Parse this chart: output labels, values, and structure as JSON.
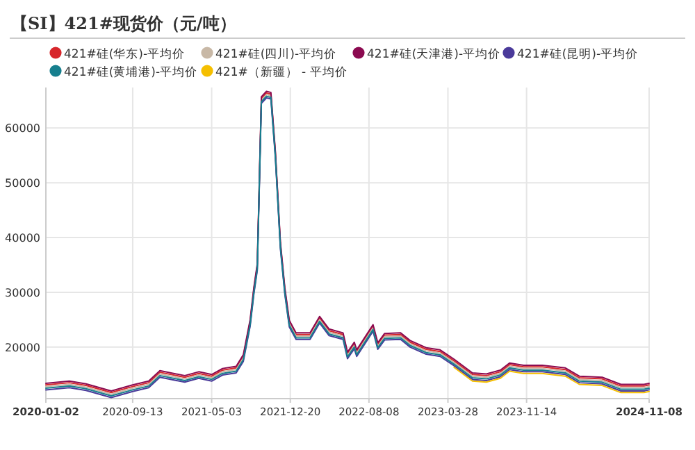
{
  "chart_data": {
    "type": "line",
    "title": "【SI】421#现货价（元/吨）",
    "x": [
      "2020-01-02",
      "2020-03-11",
      "2020-04-29",
      "2020-07-12",
      "2020-09-13",
      "2020-10-30",
      "2020-12-02",
      "2021-02-13",
      "2021-03-26",
      "2021-05-03",
      "2021-06-04",
      "2021-07-14",
      "2021-08-04",
      "2021-08-24",
      "2021-09-04",
      "2021-09-14",
      "2021-09-26",
      "2021-10-11",
      "2021-10-24",
      "2021-11-06",
      "2021-11-21",
      "2021-12-04",
      "2021-12-17",
      "2022-01-06",
      "2022-02-16",
      "2022-03-16",
      "2022-04-13",
      "2022-05-24",
      "2022-06-06",
      "2022-06-26",
      "2022-07-03",
      "2022-08-20",
      "2022-09-03",
      "2022-09-23",
      "2022-11-09",
      "2022-12-07",
      "2023-01-23",
      "2023-03-05",
      "2023-04-15",
      "2023-06-08",
      "2023-07-19",
      "2023-08-29",
      "2023-09-25",
      "2023-11-05",
      "2023-12-30",
      "2024-03-07",
      "2024-04-17",
      "2024-06-23",
      "2024-08-17",
      "2024-10-24",
      "2024-11-08"
    ],
    "series": [
      {
        "name": "421#硅(华东)-平均价",
        "color": "#d7262b",
        "values": [
          13100,
          13500,
          13000,
          11700,
          12800,
          13500,
          15400,
          14500,
          15200,
          14700,
          15800,
          16200,
          18300,
          24700,
          30600,
          34900,
          65400,
          66400,
          66200,
          55600,
          38800,
          30500,
          24600,
          22300,
          22300,
          25300,
          23000,
          22300,
          18800,
          20600,
          19200,
          23800,
          20500,
          22200,
          22300,
          20900,
          19600,
          19200,
          17500,
          15000,
          14800,
          15500,
          16800,
          16400,
          16400,
          15900,
          14400,
          14200,
          12900,
          12900,
          13100
        ]
      },
      {
        "name": "421#硅(四川)-平均价",
        "color": "#c8b8a6",
        "values": [
          12800,
          13200,
          12700,
          11400,
          12500,
          13200,
          15100,
          14200,
          14900,
          14400,
          15500,
          15900,
          18000,
          24400,
          30300,
          34600,
          65100,
          66100,
          65900,
          55300,
          38500,
          30200,
          24300,
          22000,
          22000,
          25000,
          22700,
          22000,
          18500,
          20300,
          18900,
          23500,
          20200,
          21900,
          22000,
          20600,
          19300,
          18900,
          17200,
          14700,
          14500,
          15200,
          16500,
          16100,
          16100,
          15600,
          14100,
          13900,
          12600,
          12600,
          12800
        ]
      },
      {
        "name": "421#硅(天津港)-平均价",
        "color": "#8b0a50",
        "values": [
          13400,
          13800,
          13300,
          12000,
          13100,
          13800,
          15700,
          14800,
          15500,
          15000,
          16100,
          16500,
          18600,
          25000,
          30900,
          35200,
          65700,
          66700,
          66500,
          55900,
          39100,
          30800,
          24900,
          22600,
          22600,
          25600,
          23300,
          22600,
          19100,
          20900,
          19500,
          24100,
          20800,
          22500,
          22600,
          21200,
          19900,
          19500,
          17800,
          15300,
          15100,
          15800,
          17100,
          16700,
          16700,
          16200,
          14700,
          14500,
          13200,
          13200,
          13400
        ]
      },
      {
        "name": "421#硅(昆明)-平均价",
        "color": "#4a3a9a",
        "values": [
          12200,
          12600,
          12100,
          10800,
          11900,
          12600,
          14500,
          13600,
          14300,
          13800,
          14900,
          15300,
          17400,
          23800,
          29700,
          34000,
          64500,
          65500,
          65300,
          54700,
          37900,
          29600,
          23700,
          21400,
          21400,
          24400,
          22100,
          21400,
          17900,
          19700,
          18300,
          22900,
          19600,
          21300,
          21400,
          20000,
          18700,
          18300,
          16600,
          14100,
          13900,
          14600,
          15900,
          15500,
          15500,
          15000,
          13500,
          13300,
          12000,
          12000,
          12200
        ]
      },
      {
        "name": "421#硅(黄埔港)-平均价",
        "color": "#167f8e",
        "values": [
          12500,
          12900,
          12400,
          11100,
          12200,
          12900,
          14800,
          13900,
          14600,
          14100,
          15200,
          15600,
          17700,
          24100,
          30000,
          34300,
          64800,
          65800,
          65600,
          55000,
          38200,
          29900,
          24000,
          21700,
          21700,
          24700,
          22400,
          21700,
          18200,
          20000,
          18600,
          23200,
          19900,
          21600,
          21700,
          20300,
          19000,
          18600,
          16900,
          14400,
          14200,
          14900,
          16200,
          15800,
          15800,
          15300,
          13800,
          13600,
          12300,
          12300,
          12500
        ]
      },
      {
        "name": "421#（新疆） - 平均价",
        "color": "#f5bf00",
        "values": [
          null,
          null,
          null,
          null,
          null,
          null,
          null,
          null,
          null,
          null,
          null,
          null,
          null,
          null,
          null,
          null,
          null,
          null,
          null,
          null,
          null,
          null,
          null,
          null,
          null,
          null,
          null,
          null,
          null,
          null,
          null,
          null,
          null,
          null,
          null,
          null,
          null,
          null,
          16300,
          13800,
          13600,
          14300,
          15600,
          15200,
          15200,
          14700,
          13200,
          13000,
          11700,
          11700,
          11900
        ]
      }
    ],
    "xlim": [
      "2020-01-02",
      "2024-11-08"
    ],
    "xticks": [
      "2020-01-02",
      "2020-09-13",
      "2021-05-03",
      "2021-12-20",
      "2022-08-08",
      "2023-03-28",
      "2023-11-14",
      "2024-11-08"
    ],
    "ylim": [
      10600,
      67400
    ],
    "yticks": [
      20000,
      30000,
      40000,
      50000,
      60000
    ],
    "grid": true,
    "legend": "top",
    "marker": "none",
    "line_style": "solid"
  }
}
